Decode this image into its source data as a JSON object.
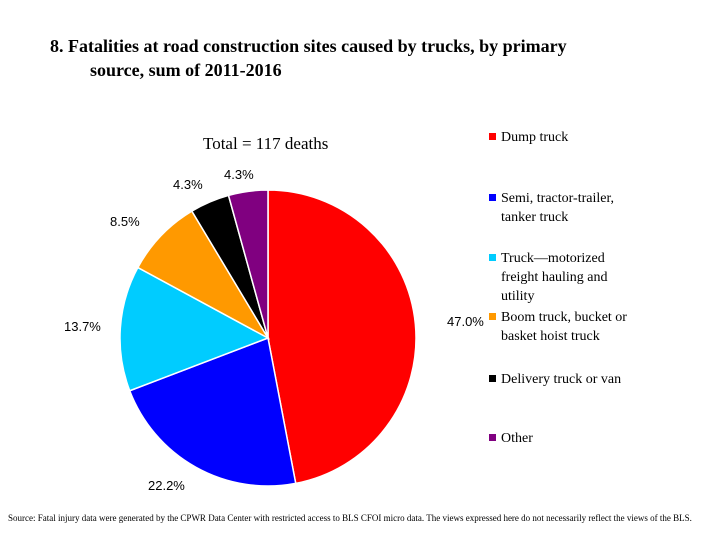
{
  "title_line1": "8. Fatalities at road construction sites caused by trucks, by primary",
  "title_line2": "source, sum of 2011-2016",
  "subtitle": "Total = 117 deaths",
  "source": "Source: Fatal injury data were generated by the CPWR Data Center with restricted access to BLS CFOI micro data. The views expressed here do not necessarily reflect the views of the BLS.",
  "chart_data": {
    "type": "pie",
    "title": "8. Fatalities at road construction sites caused by trucks, by primary source, sum of 2011-2016",
    "subtitle": "Total = 117 deaths",
    "legend_position": "right",
    "slices": [
      {
        "label": "Dump truck",
        "value": 47.0,
        "value_label": "47.0%",
        "color": "#ff0000"
      },
      {
        "label": "Semi, tractor-trailer, tanker truck",
        "value": 22.2,
        "value_label": "22.2%",
        "color": "#0000ff"
      },
      {
        "label": "Truck—motorized freight hauling and utility",
        "value": 13.7,
        "value_label": "13.7%",
        "color": "#00ccff"
      },
      {
        "label": "Boom truck, bucket or basket hoist truck",
        "value": 8.5,
        "value_label": "8.5%",
        "color": "#ff9900"
      },
      {
        "label": "Delivery truck or van",
        "value": 4.3,
        "value_label": "4.3%",
        "color": "#000000"
      },
      {
        "label": "Other",
        "value": 4.3,
        "value_label": "4.3%",
        "color": "#800080"
      }
    ]
  },
  "legend": [
    {
      "lines": [
        "Dump truck"
      ],
      "color": "#ff0000"
    },
    {
      "lines": [
        "Semi, tractor-trailer,",
        "tanker truck"
      ],
      "color": "#0000ff"
    },
    {
      "lines": [
        "Truck—motorized",
        "freight hauling and",
        "utility"
      ],
      "color": "#00ccff"
    },
    {
      "lines": [
        "Boom truck, bucket or",
        "basket hoist truck"
      ],
      "color": "#ff9900"
    },
    {
      "lines": [
        "Delivery truck or van"
      ],
      "color": "#000000"
    },
    {
      "lines": [
        "Other"
      ],
      "color": "#800080"
    }
  ]
}
